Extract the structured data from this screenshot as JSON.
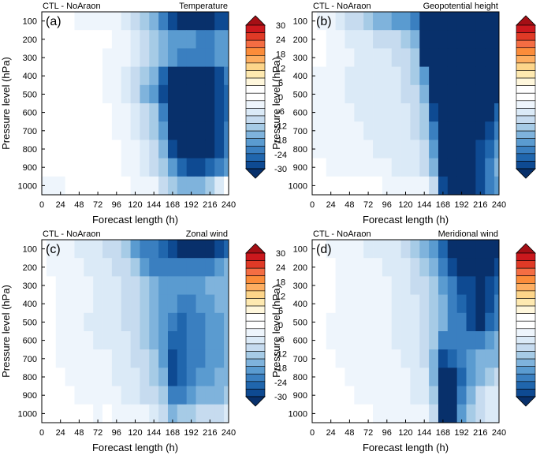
{
  "colorbar": {
    "labels": [
      "30",
      "24",
      "18",
      "12",
      "6",
      "0",
      "-6",
      "-12",
      "-18",
      "-24",
      "-30"
    ],
    "colors": [
      "#a50f15",
      "#cb181d",
      "#e03a26",
      "#f46d43",
      "#fb8c3a",
      "#fdae61",
      "#fdd58a",
      "#fee9b0",
      "#fff7dc",
      "#ffffff",
      "#ffffff",
      "#eef5fc",
      "#dbeaf7",
      "#c6dbef",
      "#a6cbe6",
      "#7fb3dc",
      "#5a9bd0",
      "#3a7fc0",
      "#2066ad",
      "#0e4a92",
      "#08306b"
    ]
  },
  "chart_data": [
    {
      "type": "heatmap",
      "panel_label": "(a)",
      "header_left": "CTL - NoAraon",
      "title": "Temperature",
      "xlabel": "Forecast length (h)",
      "ylabel": "Pressure level (hPa)",
      "x_ticks": [
        "0",
        "24",
        "48",
        "72",
        "96",
        "120",
        "144",
        "168",
        "192",
        "216",
        "240"
      ],
      "y_ticks": [
        "100",
        "200",
        "300",
        "400",
        "500",
        "600",
        "700",
        "800",
        "900",
        "1000"
      ],
      "x": [
        0,
        12,
        24,
        36,
        48,
        60,
        72,
        84,
        96,
        108,
        120,
        132,
        144,
        156,
        168,
        180,
        192,
        204,
        216,
        228,
        240
      ],
      "y": [
        100,
        200,
        300,
        400,
        500,
        600,
        700,
        800,
        900,
        1000
      ],
      "z": [
        [
          0,
          0,
          -1,
          -1,
          -2,
          -2,
          -2,
          -3,
          -4,
          -6,
          -9,
          -12,
          -16,
          -22,
          -27,
          -29,
          -30,
          -30,
          -29,
          -28,
          -26
        ],
        [
          0,
          0,
          0,
          0,
          0,
          0,
          0,
          -1,
          -2,
          -3,
          -5,
          -9,
          -12,
          -14,
          -17,
          -18,
          -19,
          -20,
          -20,
          -19,
          -18
        ],
        [
          0,
          0,
          0,
          0,
          0,
          -1,
          -1,
          -2,
          -3,
          -4,
          -5,
          -9,
          -13,
          -16,
          -19,
          -22,
          -22,
          -21,
          -20,
          -19,
          -18
        ],
        [
          0,
          0,
          0,
          0,
          0,
          -1,
          -1,
          -2,
          -3,
          -5,
          -8,
          -12,
          -16,
          -24,
          -30,
          -30,
          -30,
          -30,
          -30,
          -26,
          -22
        ],
        [
          0,
          0,
          0,
          0,
          0,
          0,
          -1,
          -2,
          -3,
          -5,
          -9,
          -14,
          -18,
          -26,
          -30,
          -30,
          -30,
          -30,
          -30,
          -28,
          -24
        ],
        [
          0,
          0,
          0,
          0,
          0,
          0,
          0,
          -1,
          -2,
          -4,
          -7,
          -10,
          -13,
          -22,
          -30,
          -30,
          -30,
          -30,
          -30,
          -28,
          -24
        ],
        [
          0,
          0,
          0,
          0,
          0,
          0,
          0,
          -1,
          -2,
          -3,
          -5,
          -8,
          -11,
          -17,
          -30,
          -30,
          -30,
          -30,
          -30,
          -27,
          -22
        ],
        [
          0,
          0,
          0,
          0,
          0,
          0,
          0,
          0,
          -1,
          -2,
          -4,
          -7,
          -10,
          -14,
          -26,
          -30,
          -30,
          -30,
          -30,
          -26,
          -20
        ],
        [
          -1,
          -1,
          -1,
          -1,
          -1,
          -1,
          -1,
          -1,
          -1,
          -2,
          -3,
          -5,
          -8,
          -13,
          -18,
          -25,
          -28,
          -27,
          -25,
          -21,
          -17
        ],
        [
          -2,
          -2,
          -2,
          -1,
          -1,
          -1,
          -1,
          -1,
          -1,
          -1,
          -2,
          -3,
          -4,
          -8,
          -13,
          -15,
          -15,
          -14,
          -11,
          -7,
          3
        ]
      ]
    },
    {
      "type": "heatmap",
      "panel_label": "(b)",
      "header_left": "CTL - NoAraon",
      "title": "Geopotential height",
      "xlabel": "Forecast length (h)",
      "ylabel": "Pressure level (hPa)",
      "x_ticks": [
        "0",
        "24",
        "48",
        "72",
        "96",
        "120",
        "144",
        "168",
        "192",
        "216",
        "240"
      ],
      "y_ticks": [
        "100",
        "200",
        "300",
        "400",
        "500",
        "600",
        "700",
        "800",
        "900",
        "1000"
      ],
      "x": [
        0,
        12,
        24,
        36,
        48,
        60,
        72,
        84,
        96,
        108,
        120,
        132,
        144,
        156,
        168,
        180,
        192,
        204,
        216,
        228,
        240
      ],
      "y": [
        100,
        200,
        300,
        400,
        500,
        600,
        700,
        800,
        900,
        1000
      ],
      "z": [
        [
          -1,
          -2,
          -3,
          -6,
          -8,
          -10,
          -12,
          -14,
          -15,
          -17,
          -19,
          -22,
          -30,
          -30,
          -30,
          -30,
          -30,
          -30,
          -30,
          -30,
          -30
        ],
        [
          -1,
          -1,
          -2,
          -3,
          -5,
          -6,
          -7,
          -8,
          -9,
          -10,
          -11,
          -14,
          -30,
          -30,
          -30,
          -30,
          -30,
          -30,
          -30,
          -30,
          -30
        ],
        [
          -1,
          -1,
          -2,
          -3,
          -4,
          -5,
          -6,
          -6,
          -7,
          -8,
          -9,
          -12,
          -30,
          -30,
          -30,
          -30,
          -30,
          -30,
          -30,
          -30,
          -30
        ],
        [
          -2,
          -2,
          -3,
          -4,
          -5,
          -6,
          -6,
          -7,
          -7,
          -7,
          -8,
          -11,
          -18,
          -30,
          -30,
          -30,
          -30,
          -30,
          -30,
          -30,
          -30
        ],
        [
          -2,
          -3,
          -3,
          -4,
          -5,
          -5,
          -6,
          -6,
          -7,
          -7,
          -8,
          -10,
          -15,
          -30,
          -30,
          -30,
          -30,
          -30,
          -30,
          -30,
          -30
        ],
        [
          -2,
          -3,
          -3,
          -4,
          -4,
          -5,
          -5,
          -6,
          -6,
          -7,
          -7,
          -9,
          -13,
          -28,
          -30,
          -30,
          -30,
          -30,
          -30,
          -30,
          -24
        ],
        [
          -2,
          -2,
          -3,
          -3,
          -4,
          -4,
          -5,
          -5,
          -6,
          -6,
          -7,
          -8,
          -11,
          -22,
          -30,
          -30,
          -30,
          -30,
          -30,
          -26,
          -20
        ],
        [
          -2,
          -2,
          -2,
          -3,
          -3,
          -4,
          -4,
          -5,
          -5,
          -5,
          -6,
          -7,
          -9,
          -17,
          -30,
          -30,
          -30,
          -30,
          -28,
          -24,
          -17
        ],
        [
          -1,
          -1,
          -2,
          -2,
          -3,
          -3,
          -4,
          -4,
          -4,
          -5,
          -5,
          -6,
          -8,
          -14,
          -30,
          -30,
          -30,
          -30,
          -26,
          -22,
          -16
        ],
        [
          -1,
          -1,
          -1,
          -1,
          -1,
          -1,
          -1,
          -1,
          -2,
          -2,
          -2,
          -3,
          -4,
          -10,
          -26,
          -30,
          -30,
          -30,
          -27,
          -22,
          -17
        ]
      ]
    },
    {
      "type": "heatmap",
      "panel_label": "(c)",
      "header_left": "CTL - NoAraon",
      "title": "Zonal wind",
      "xlabel": "Forecast length (h)",
      "ylabel": "Pressure level (hPa)",
      "x_ticks": [
        "0",
        "24",
        "48",
        "72",
        "96",
        "120",
        "144",
        "168",
        "192",
        "216",
        "240"
      ],
      "y_ticks": [
        "100",
        "200",
        "300",
        "400",
        "500",
        "600",
        "700",
        "800",
        "900",
        "1000"
      ],
      "x": [
        0,
        12,
        24,
        36,
        48,
        60,
        72,
        84,
        96,
        108,
        120,
        132,
        144,
        156,
        168,
        180,
        192,
        204,
        216,
        228,
        240
      ],
      "y": [
        100,
        200,
        300,
        400,
        500,
        600,
        700,
        800,
        900,
        1000
      ],
      "z": [
        [
          -1,
          -2,
          -3,
          -4,
          -5,
          -6,
          -7,
          -8,
          -10,
          -13,
          -17,
          -21,
          -22,
          -24,
          -28,
          -30,
          -30,
          -30,
          -30,
          -28,
          -24
        ],
        [
          -1,
          -2,
          -3,
          -3,
          -4,
          -5,
          -6,
          -7,
          -8,
          -10,
          -13,
          -17,
          -20,
          -20,
          -21,
          -22,
          -22,
          -22,
          -20,
          -18,
          -16
        ],
        [
          -1,
          -1,
          -2,
          -3,
          -4,
          -4,
          -5,
          -6,
          -7,
          -8,
          -10,
          -13,
          -16,
          -18,
          -19,
          -19,
          -18,
          -17,
          -16,
          -15,
          -14
        ],
        [
          -1,
          -1,
          -2,
          -3,
          -3,
          -4,
          -5,
          -6,
          -7,
          -8,
          -10,
          -12,
          -15,
          -17,
          -18,
          -20,
          -20,
          -18,
          -17,
          -16,
          -15
        ],
        [
          -1,
          -1,
          -2,
          -3,
          -4,
          -5,
          -5,
          -6,
          -7,
          -8,
          -10,
          -12,
          -15,
          -18,
          -21,
          -23,
          -22,
          -20,
          -18,
          -17,
          -15
        ],
        [
          -1,
          -1,
          -2,
          -2,
          -3,
          -4,
          -5,
          -5,
          -6,
          -7,
          -9,
          -11,
          -14,
          -18,
          -24,
          -25,
          -22,
          -20,
          -18,
          -17,
          -16
        ],
        [
          -1,
          -1,
          -2,
          -2,
          -3,
          -3,
          -4,
          -4,
          -5,
          -6,
          -8,
          -10,
          -13,
          -17,
          -26,
          -24,
          -21,
          -20,
          -18,
          -17,
          -16
        ],
        [
          0,
          -1,
          -1,
          -2,
          -2,
          -3,
          -4,
          -4,
          -5,
          -6,
          -7,
          -9,
          -12,
          -16,
          -27,
          -24,
          -20,
          -18,
          -17,
          -16,
          -15
        ],
        [
          0,
          0,
          -1,
          -1,
          -2,
          -2,
          -3,
          -3,
          -4,
          -5,
          -6,
          -8,
          -10,
          -13,
          -22,
          -21,
          -18,
          -16,
          -15,
          -14,
          -13
        ],
        [
          0,
          0,
          0,
          -1,
          -1,
          -1,
          -2,
          2,
          -2,
          -2,
          -3,
          -4,
          -6,
          -9,
          -14,
          -13,
          -11,
          -10,
          -9,
          -8,
          -7
        ]
      ]
    },
    {
      "type": "heatmap",
      "panel_label": "(d)",
      "header_left": "CTL - NoAraon",
      "title": "Meridional wind",
      "xlabel": "Forecast length (h)",
      "ylabel": "Pressure level (hPa)",
      "x_ticks": [
        "0",
        "24",
        "48",
        "72",
        "96",
        "120",
        "144",
        "168",
        "192",
        "216",
        "240"
      ],
      "y_ticks": [
        "100",
        "200",
        "300",
        "400",
        "500",
        "600",
        "700",
        "800",
        "900",
        "1000"
      ],
      "x": [
        0,
        12,
        24,
        36,
        48,
        60,
        72,
        84,
        96,
        108,
        120,
        132,
        144,
        156,
        168,
        180,
        192,
        204,
        216,
        228,
        240
      ],
      "y": [
        100,
        200,
        300,
        400,
        500,
        600,
        700,
        800,
        900,
        1000
      ],
      "z": [
        [
          -1,
          -1,
          -2,
          -3,
          -4,
          -4,
          -5,
          -5,
          -6,
          -7,
          -9,
          -11,
          -14,
          -18,
          -24,
          -30,
          -30,
          -30,
          -30,
          -30,
          -30
        ],
        [
          -1,
          -1,
          -1,
          -2,
          -3,
          -3,
          -4,
          -4,
          -5,
          -6,
          -7,
          -9,
          -11,
          -15,
          -20,
          -26,
          -30,
          -30,
          -30,
          -30,
          -28
        ],
        [
          -1,
          -1,
          -1,
          -2,
          -2,
          -3,
          -3,
          -4,
          -4,
          -5,
          -6,
          -8,
          -10,
          -13,
          -18,
          -22,
          -26,
          -28,
          -30,
          -28,
          -24
        ],
        [
          -1,
          -1,
          -1,
          -2,
          -2,
          -3,
          -3,
          -3,
          -4,
          -5,
          -6,
          -7,
          -9,
          -12,
          -16,
          -20,
          -24,
          -28,
          -30,
          -26,
          -22
        ],
        [
          -1,
          -1,
          -2,
          -2,
          -2,
          -3,
          -3,
          -4,
          -4,
          -5,
          -6,
          -7,
          -9,
          -12,
          -16,
          -20,
          -22,
          -26,
          -30,
          -24,
          -20
        ],
        [
          -1,
          -1,
          -2,
          -2,
          -2,
          -3,
          -3,
          -4,
          -4,
          -5,
          -6,
          -7,
          -9,
          -13,
          -20,
          -22,
          -22,
          -22,
          -20,
          -18,
          -16
        ],
        [
          -1,
          -1,
          -1,
          -2,
          -2,
          -2,
          -3,
          -3,
          -4,
          -4,
          -5,
          -6,
          -8,
          -14,
          -27,
          -24,
          -20,
          -18,
          -16,
          -15,
          -14
        ],
        [
          -1,
          -1,
          -1,
          -1,
          -2,
          -2,
          -2,
          -3,
          -3,
          -4,
          -4,
          -5,
          -7,
          -14,
          -30,
          -30,
          -24,
          -18,
          -14,
          -12,
          -10
        ],
        [
          0,
          -1,
          -1,
          -1,
          -1,
          -2,
          -2,
          -2,
          -3,
          -3,
          -4,
          -5,
          -6,
          -13,
          -30,
          -30,
          -22,
          -14,
          -8,
          -6,
          -5
        ],
        [
          0,
          0,
          0,
          -1,
          -1,
          -1,
          -1,
          -2,
          -2,
          -2,
          -3,
          -3,
          -4,
          -10,
          -30,
          -30,
          -18,
          -12,
          -9,
          -7,
          -6
        ]
      ]
    }
  ]
}
